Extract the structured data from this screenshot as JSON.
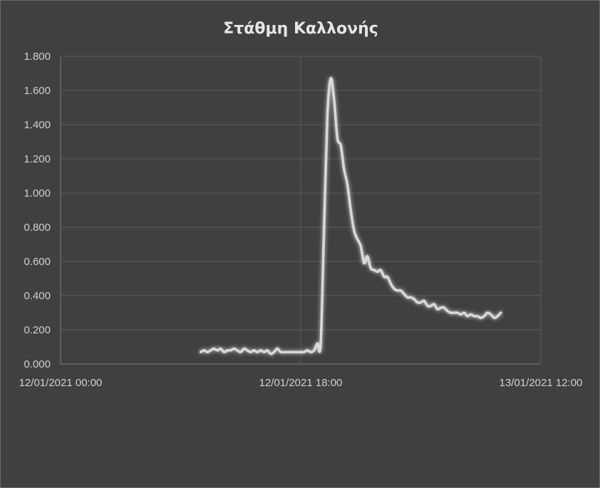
{
  "chart_data": {
    "type": "line",
    "title": "Στάθμη Καλλονής",
    "xlabel": "",
    "ylabel": "",
    "x_range_hours": [
      0,
      36
    ],
    "ylim": [
      0,
      1.8
    ],
    "y_ticks": [
      0,
      0.2,
      0.4,
      0.6,
      0.8,
      1.0,
      1.2,
      1.4,
      1.6,
      1.8
    ],
    "y_tick_labels": [
      "0.000",
      "0.200",
      "0.400",
      "0.600",
      "0.800",
      "1.000",
      "1.200",
      "1.400",
      "1.600",
      "1.800"
    ],
    "x_ticks": [
      0,
      18,
      36
    ],
    "x_tick_labels": [
      "12/01/2021 00:00",
      "12/01/2021 18:00",
      "13/01/2021 12:00"
    ],
    "grid": true,
    "line_color": "#d9d9d9",
    "series": [
      {
        "name": "",
        "x": [
          10.5,
          10.75,
          11.0,
          11.25,
          11.5,
          11.75,
          12.0,
          12.25,
          12.5,
          12.75,
          13.0,
          13.25,
          13.5,
          13.75,
          14.0,
          14.25,
          14.5,
          14.75,
          15.0,
          15.25,
          15.5,
          15.75,
          16.0,
          16.25,
          16.5,
          16.75,
          17.0,
          17.25,
          17.5,
          17.75,
          18.0,
          18.25,
          18.5,
          18.75,
          19.0,
          19.25,
          19.5,
          19.75,
          20.0,
          20.25,
          20.5,
          20.75,
          21.0,
          21.25,
          21.5,
          21.75,
          22.0,
          22.25,
          22.5,
          22.75,
          23.0,
          23.25,
          23.5,
          23.75,
          24.0,
          24.25,
          24.5,
          24.75,
          25.0,
          25.25,
          25.5,
          25.75,
          26.0,
          26.25,
          26.5,
          26.75,
          27.0,
          27.25,
          27.5,
          27.75,
          28.0,
          28.25,
          28.5,
          28.75,
          29.0,
          29.25,
          29.5,
          29.75,
          30.0,
          30.25,
          30.5,
          30.75,
          31.0,
          31.25,
          31.5,
          31.75,
          32.0,
          32.25,
          32.5,
          32.75,
          33.0
        ],
        "y": [
          0.07,
          0.08,
          0.07,
          0.08,
          0.09,
          0.08,
          0.09,
          0.07,
          0.08,
          0.08,
          0.09,
          0.08,
          0.07,
          0.09,
          0.08,
          0.07,
          0.08,
          0.07,
          0.08,
          0.07,
          0.08,
          0.06,
          0.07,
          0.09,
          0.07,
          0.07,
          0.07,
          0.07,
          0.07,
          0.07,
          0.07,
          0.07,
          0.08,
          0.07,
          0.08,
          0.12,
          0.12,
          0.8,
          1.45,
          1.67,
          1.55,
          1.32,
          1.28,
          1.14,
          1.05,
          0.9,
          0.78,
          0.73,
          0.69,
          0.59,
          0.63,
          0.56,
          0.55,
          0.54,
          0.55,
          0.51,
          0.51,
          0.47,
          0.44,
          0.43,
          0.43,
          0.41,
          0.39,
          0.39,
          0.38,
          0.36,
          0.36,
          0.37,
          0.34,
          0.34,
          0.35,
          0.32,
          0.33,
          0.33,
          0.31,
          0.3,
          0.3,
          0.3,
          0.29,
          0.3,
          0.28,
          0.29,
          0.28,
          0.28,
          0.27,
          0.28,
          0.3,
          0.29,
          0.27,
          0.28,
          0.3
        ]
      }
    ]
  }
}
